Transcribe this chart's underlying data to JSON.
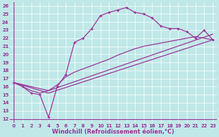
{
  "xlabel": "Windchill (Refroidissement éolien,°C)",
  "bg_color": "#c0e8e8",
  "line_color": "#993399",
  "xlim": [
    -0.5,
    23.5
  ],
  "ylim": [
    11.5,
    26.5
  ],
  "xticks": [
    0,
    1,
    2,
    3,
    4,
    5,
    6,
    7,
    8,
    9,
    10,
    11,
    12,
    13,
    14,
    15,
    16,
    17,
    18,
    19,
    20,
    21,
    22,
    23
  ],
  "yticks": [
    12,
    13,
    14,
    15,
    16,
    17,
    18,
    19,
    20,
    21,
    22,
    23,
    24,
    25,
    26
  ],
  "series1_x": [
    0,
    1,
    2,
    3,
    4,
    5,
    6,
    7,
    8,
    9,
    10,
    11,
    12,
    13,
    14,
    15,
    16,
    17,
    18,
    19,
    20,
    21,
    22,
    23
  ],
  "series1_y": [
    16.5,
    16.0,
    15.2,
    15.0,
    12.2,
    16.0,
    17.5,
    21.5,
    22.0,
    23.2,
    24.8,
    25.2,
    25.5,
    25.8,
    25.2,
    25.0,
    24.5,
    23.5,
    23.2,
    23.2,
    22.8,
    22.0,
    23.0,
    21.8
  ],
  "series2_x": [
    0,
    1,
    2,
    3,
    4,
    5,
    6,
    7,
    8,
    9,
    10,
    11,
    12,
    13,
    14,
    15,
    16,
    17,
    18,
    19,
    20,
    21,
    22,
    23
  ],
  "series2_y": [
    16.5,
    16.0,
    15.5,
    15.2,
    15.5,
    16.2,
    17.2,
    17.8,
    18.2,
    18.6,
    19.0,
    19.4,
    19.9,
    20.3,
    20.7,
    21.0,
    21.2,
    21.4,
    21.6,
    21.8,
    22.0,
    22.2,
    22.0,
    21.8
  ],
  "series3_x": [
    0,
    4,
    23
  ],
  "series3_y": [
    16.5,
    15.2,
    21.8
  ],
  "series4_x": [
    0,
    4,
    23
  ],
  "series4_y": [
    16.5,
    15.5,
    22.5
  ],
  "tick_fontsize": 5.0,
  "xlabel_fontsize": 6.0
}
